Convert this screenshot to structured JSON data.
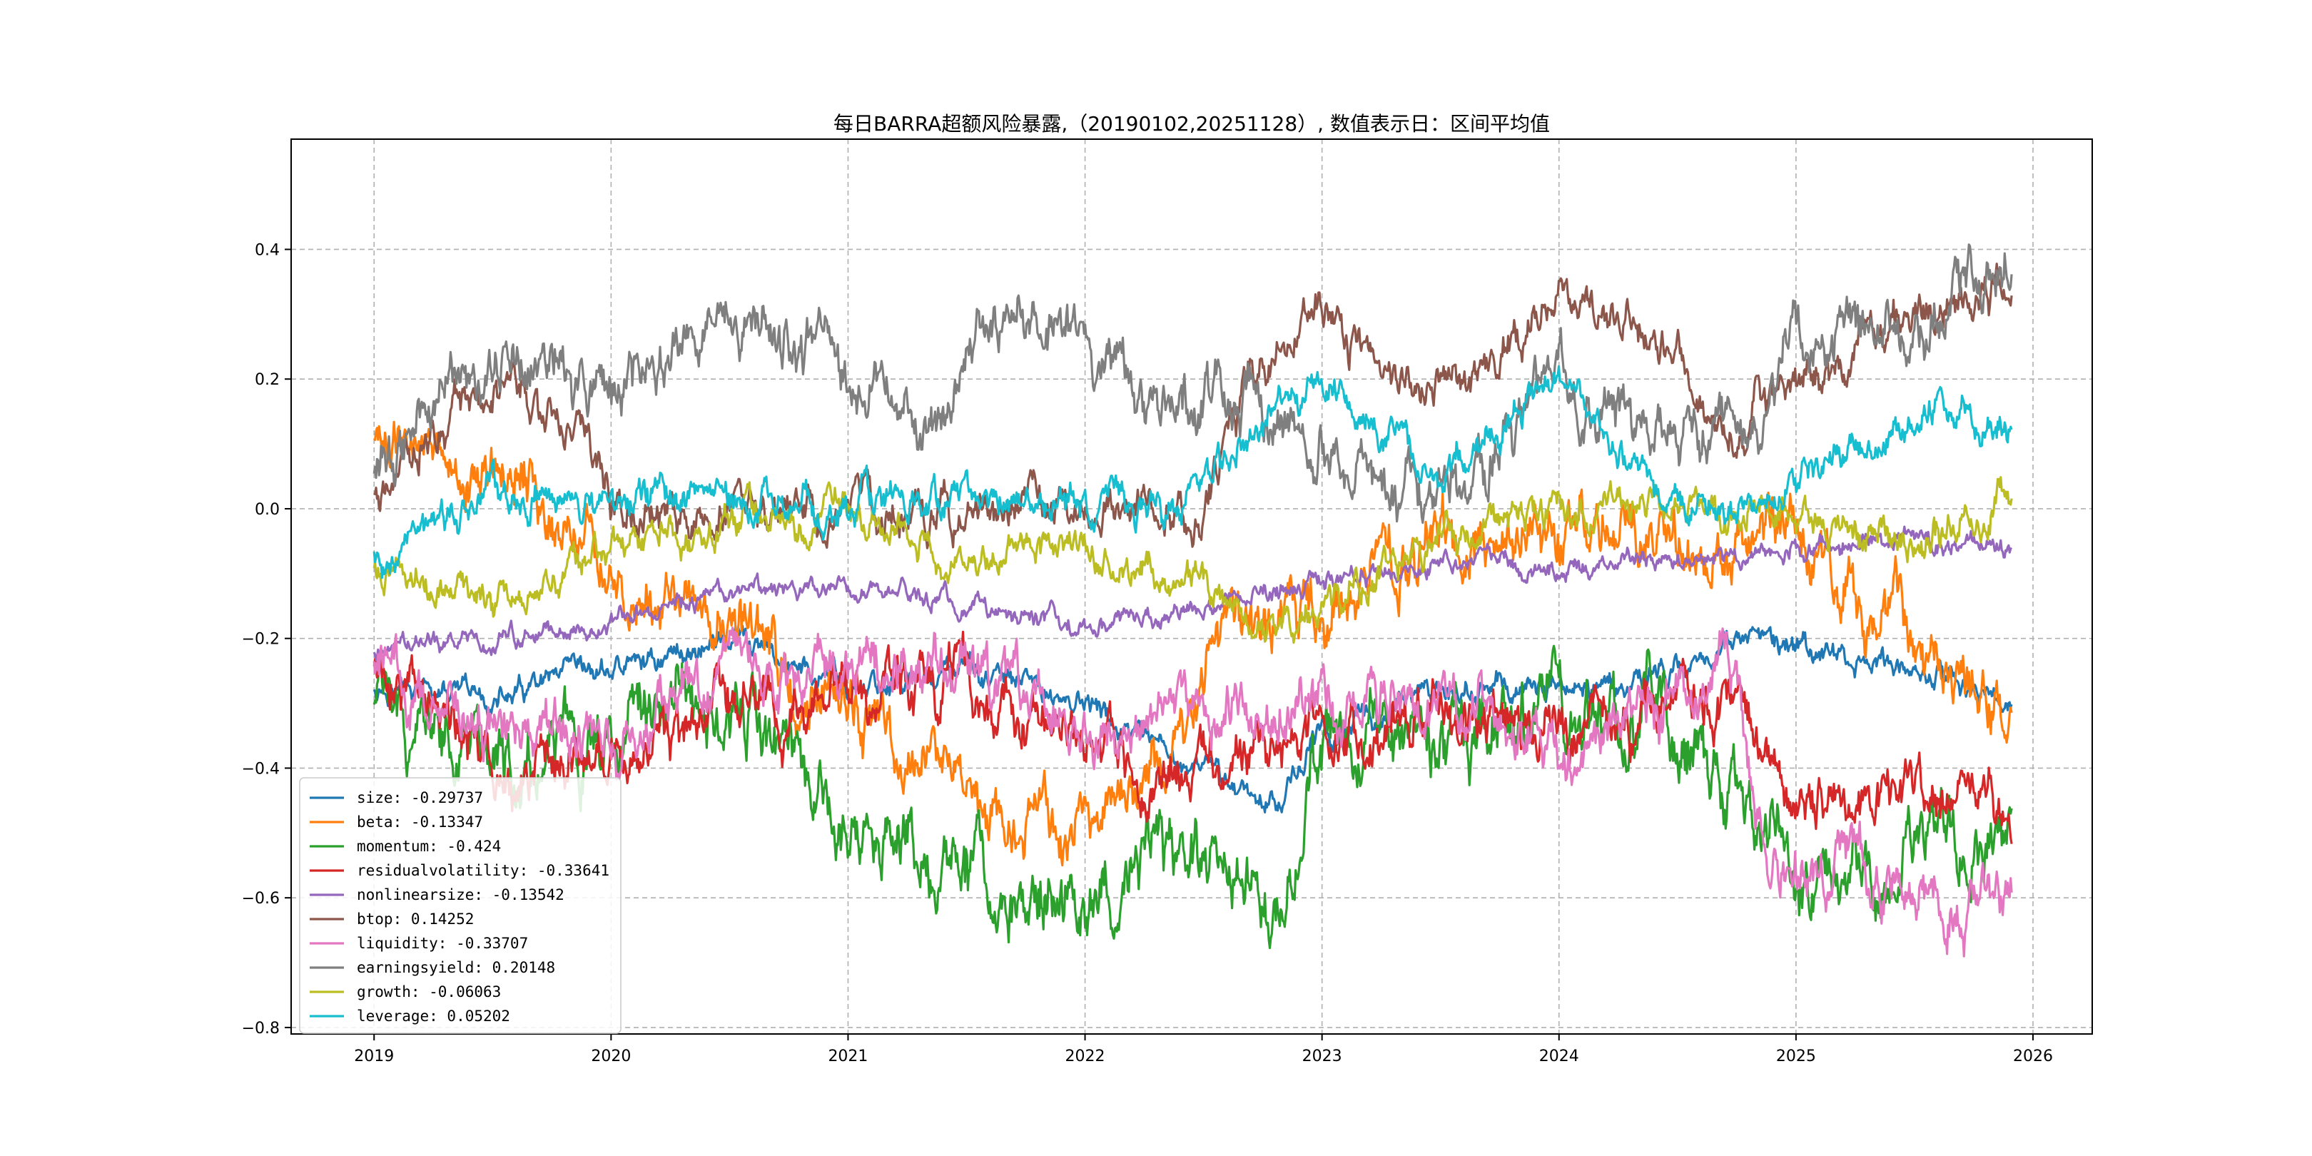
{
  "chart_data": {
    "type": "line",
    "title": "每日BARRA超额风险暴露,（20190102,20251128）,  数值表示日：区间平均值",
    "xlabel": "",
    "ylabel": "",
    "xlim": [
      2018.65,
      2026.25
    ],
    "ylim": [
      -0.81,
      0.57
    ],
    "grid": true,
    "legend_position": "lower-left",
    "x_ticks": [
      2019,
      2020,
      2021,
      2022,
      2023,
      2024,
      2025,
      2026
    ],
    "x_tick_labels": [
      "2019",
      "2020",
      "2021",
      "2022",
      "2023",
      "2024",
      "2025",
      "2026"
    ],
    "y_ticks": [
      -0.8,
      -0.6,
      -0.4,
      -0.2,
      0.0,
      0.2,
      0.4
    ],
    "y_tick_labels": [
      "−0.8",
      "−0.6",
      "−0.4",
      "−0.2",
      "0.0",
      "0.2",
      "0.4"
    ],
    "x_start": 2019.0,
    "x_end": 2025.91,
    "series": [
      {
        "name": "size",
        "legend": "size: -0.29737",
        "color": "#1f77b4",
        "noise": 0.025,
        "x": [
          2019.0,
          2019.5,
          2020.0,
          2020.5,
          2021.0,
          2021.5,
          2022.0,
          2022.3,
          2022.6,
          2022.8,
          2023.0,
          2023.5,
          2024.0,
          2024.5,
          2024.7,
          2025.0,
          2025.5,
          2025.8,
          2025.91
        ],
        "values": [
          -0.27,
          -0.3,
          -0.25,
          -0.2,
          -0.28,
          -0.25,
          -0.3,
          -0.38,
          -0.42,
          -0.45,
          -0.35,
          -0.28,
          -0.28,
          -0.25,
          -0.2,
          -0.22,
          -0.25,
          -0.28,
          -0.31
        ]
      },
      {
        "name": "beta",
        "legend": "beta: -0.13347",
        "color": "#ff7f0e",
        "noise": 0.06,
        "x": [
          2019.0,
          2019.3,
          2019.6,
          2020.0,
          2020.5,
          2021.0,
          2021.5,
          2022.0,
          2022.3,
          2022.6,
          2023.0,
          2023.5,
          2024.0,
          2024.5,
          2025.0,
          2025.5,
          2025.91
        ],
        "values": [
          0.12,
          0.05,
          0.05,
          -0.1,
          -0.2,
          -0.3,
          -0.45,
          -0.5,
          -0.4,
          -0.2,
          -0.15,
          -0.05,
          -0.05,
          -0.05,
          -0.05,
          -0.2,
          -0.33
        ]
      },
      {
        "name": "momentum",
        "legend": "momentum: -0.424",
        "color": "#2ca02c",
        "noise": 0.07,
        "x": [
          2019.0,
          2019.5,
          2020.0,
          2020.5,
          2021.0,
          2021.5,
          2022.0,
          2022.3,
          2022.6,
          2022.8,
          2023.0,
          2023.5,
          2024.0,
          2024.5,
          2024.75,
          2025.0,
          2025.3,
          2025.6,
          2025.91
        ],
        "values": [
          -0.3,
          -0.4,
          -0.35,
          -0.3,
          -0.5,
          -0.55,
          -0.6,
          -0.55,
          -0.55,
          -0.6,
          -0.35,
          -0.35,
          -0.3,
          -0.35,
          -0.45,
          -0.55,
          -0.6,
          -0.5,
          -0.54
        ]
      },
      {
        "name": "residualvolatility",
        "legend": "residualvolatility: -0.33641",
        "color": "#d62728",
        "noise": 0.055,
        "x": [
          2019.0,
          2019.5,
          2020.0,
          2020.5,
          2021.0,
          2021.5,
          2022.0,
          2022.3,
          2022.6,
          2023.0,
          2023.5,
          2024.0,
          2024.5,
          2024.75,
          2025.0,
          2025.5,
          2025.91
        ],
        "values": [
          -0.25,
          -0.4,
          -0.4,
          -0.3,
          -0.3,
          -0.25,
          -0.35,
          -0.42,
          -0.4,
          -0.35,
          -0.3,
          -0.35,
          -0.28,
          -0.3,
          -0.45,
          -0.45,
          -0.43
        ]
      },
      {
        "name": "nonlinearsize",
        "legend": "nonlinearsize: -0.13542",
        "color": "#9467bd",
        "noise": 0.02,
        "x": [
          2019.0,
          2019.5,
          2020.0,
          2020.5,
          2021.0,
          2021.5,
          2022.0,
          2022.5,
          2023.0,
          2023.5,
          2024.0,
          2024.5,
          2025.0,
          2025.5,
          2025.91
        ],
        "values": [
          -0.22,
          -0.2,
          -0.17,
          -0.13,
          -0.12,
          -0.15,
          -0.18,
          -0.16,
          -0.11,
          -0.08,
          -0.09,
          -0.08,
          -0.06,
          -0.05,
          -0.06
        ]
      },
      {
        "name": "btop",
        "legend": "btop: 0.14252",
        "color": "#8c564b",
        "noise": 0.04,
        "x": [
          2019.0,
          2019.3,
          2019.6,
          2019.9,
          2020.0,
          2020.5,
          2021.0,
          2021.5,
          2022.0,
          2022.5,
          2022.7,
          2023.0,
          2023.3,
          2023.6,
          2024.0,
          2024.5,
          2024.7,
          2025.0,
          2025.5,
          2025.91
        ],
        "values": [
          0.02,
          0.15,
          0.18,
          0.1,
          0.0,
          -0.01,
          0.0,
          -0.01,
          0.01,
          -0.01,
          0.2,
          0.33,
          0.18,
          0.2,
          0.33,
          0.25,
          0.1,
          0.2,
          0.3,
          0.36
        ]
      },
      {
        "name": "liquidity",
        "legend": "liquidity: -0.33707",
        "color": "#e377c2",
        "noise": 0.055,
        "x": [
          2019.0,
          2019.5,
          2020.0,
          2020.5,
          2021.0,
          2021.5,
          2022.0,
          2022.5,
          2023.0,
          2023.5,
          2024.0,
          2024.5,
          2024.7,
          2024.9,
          2025.2,
          2025.6,
          2025.91
        ],
        "values": [
          -0.25,
          -0.35,
          -0.35,
          -0.25,
          -0.25,
          -0.25,
          -0.35,
          -0.3,
          -0.3,
          -0.3,
          -0.38,
          -0.28,
          -0.22,
          -0.55,
          -0.55,
          -0.6,
          -0.58
        ]
      },
      {
        "name": "earningsyield",
        "legend": "earningsyield: 0.20148",
        "color": "#7f7f7f",
        "noise": 0.055,
        "x": [
          2019.0,
          2019.3,
          2019.6,
          2020.0,
          2020.5,
          2021.0,
          2021.3,
          2021.6,
          2022.0,
          2022.3,
          2022.6,
          2023.0,
          2023.3,
          2023.6,
          2024.0,
          2024.5,
          2024.75,
          2025.0,
          2025.5,
          2025.91
        ],
        "values": [
          0.05,
          0.15,
          0.25,
          0.18,
          0.3,
          0.2,
          0.1,
          0.3,
          0.25,
          0.15,
          0.2,
          0.1,
          0.0,
          0.05,
          0.2,
          0.1,
          0.1,
          0.25,
          0.3,
          0.38
        ]
      },
      {
        "name": "growth",
        "legend": "growth: -0.06063",
        "color": "#bcbd22",
        "noise": 0.035,
        "x": [
          2019.0,
          2019.5,
          2020.0,
          2020.5,
          2021.0,
          2021.5,
          2022.0,
          2022.5,
          2022.8,
          2023.0,
          2023.5,
          2024.0,
          2024.5,
          2025.0,
          2025.5,
          2025.91
        ],
        "values": [
          -0.1,
          -0.15,
          -0.05,
          -0.03,
          0.0,
          -0.08,
          -0.05,
          -0.13,
          -0.2,
          -0.15,
          -0.05,
          0.0,
          0.0,
          -0.02,
          -0.05,
          0.02
        ]
      },
      {
        "name": "leverage",
        "legend": "leverage: 0.05202",
        "color": "#17becf",
        "noise": 0.035,
        "x": [
          2019.0,
          2019.5,
          2020.0,
          2020.5,
          2021.0,
          2021.5,
          2022.0,
          2022.45,
          2022.5,
          2022.8,
          2023.0,
          2023.5,
          2024.0,
          2024.5,
          2024.75,
          2025.0,
          2025.5,
          2025.91
        ],
        "values": [
          -0.08,
          0.03,
          0.0,
          0.02,
          0.0,
          0.02,
          0.0,
          0.0,
          0.05,
          0.15,
          0.2,
          0.05,
          0.2,
          0.0,
          0.0,
          0.05,
          0.15,
          0.12
        ]
      }
    ]
  }
}
